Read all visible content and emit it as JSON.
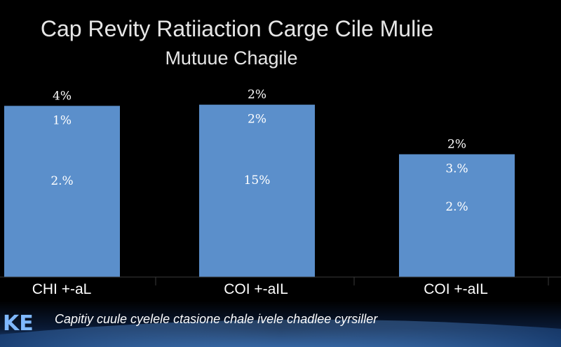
{
  "chart_data": {
    "type": "bar",
    "title": "Cap Revity Ratiiaction Carge Cile Mulie",
    "subtitle": "Mutuue Chagile",
    "categories": [
      "CHI +-aL",
      "COI +-aIL",
      "COI +-aIL"
    ],
    "values": [
      145,
      146,
      104
    ],
    "ylim": [
      0,
      160
    ],
    "top_labels": [
      "4%",
      "2%",
      "2%"
    ],
    "inner_labels": [
      [
        "1%",
        "2.%"
      ],
      [
        "2%",
        "15%"
      ],
      [
        "3.%",
        "2.%"
      ]
    ],
    "bar_color": "#5b8fcb",
    "background": "#000000",
    "grid": false,
    "legend": "none"
  },
  "caption": "Capitiy cuule cyelele ctasione chale ivele chadlee cyrsiller",
  "logo": {
    "text": "KE",
    "color": "#7fb8ff"
  }
}
